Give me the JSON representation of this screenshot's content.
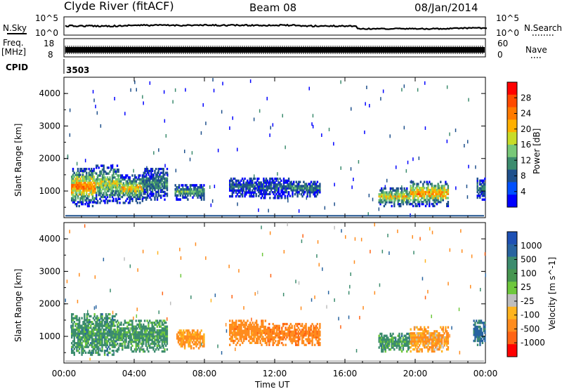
{
  "header": {
    "station": "Clyde River (fitACF)",
    "beam": "Beam 08",
    "date": "08/Jan/2014"
  },
  "top_panel": {
    "nsky_label": "N.Sky",
    "nsky_ticks": [
      "10^5",
      "10^0"
    ],
    "nsearch_label": "N.Search",
    "freq_label": "Freq.",
    "freq_unit": "[MHz]",
    "freq_ticks": [
      "18",
      "8"
    ],
    "nave_label": "Nave",
    "nave_ticks": [
      "60",
      "0"
    ],
    "cpid_label": "CPID",
    "cpid_value": "3503"
  },
  "colorbars": {
    "power": {
      "label": "Power [dB]",
      "ticks": [
        "28",
        "24",
        "20",
        "16",
        "12",
        "8",
        "4"
      ],
      "colors": [
        "#ff0000",
        "#ff4a00",
        "#ff7a00",
        "#ffb000",
        "#c8dc28",
        "#78c878",
        "#3c8c6e",
        "#1e508c",
        "#0050ff",
        "#0000ff"
      ]
    },
    "velocity": {
      "label": "Velocity [m s^-1]",
      "ticks": [
        "1000",
        "500",
        "100",
        "25",
        "-25",
        "-100",
        "-500",
        "-1000"
      ],
      "colors": [
        "#1e50b4",
        "#2864a0",
        "#3c8c6e",
        "#469650",
        "#6ec83c",
        "#bebebe",
        "#ffb41e",
        "#ff8c1e",
        "#ff6414",
        "#ff0000"
      ]
    }
  },
  "chart_data": [
    {
      "type": "heatmap",
      "ylabel": "Slant Range [km]",
      "xlabel": "",
      "x_ticks": [
        "00:00",
        "04:00",
        "08:00",
        "12:00",
        "16:00",
        "20:00",
        "00:00"
      ],
      "y_ticks": [
        "4000",
        "3000",
        "2000",
        "1000"
      ],
      "xlim_hours": [
        0,
        24
      ],
      "ylim": [
        180,
        4500
      ],
      "colorscale": "power",
      "clim_db": [
        0,
        32
      ],
      "blobs": [
        {
          "t0": 0.4,
          "t1": 1.8,
          "r0": 500,
          "r1": 1700,
          "val": 24
        },
        {
          "t0": 1.8,
          "t1": 3.2,
          "r0": 600,
          "r1": 1800,
          "val": 18
        },
        {
          "t0": 3.2,
          "t1": 4.5,
          "r0": 600,
          "r1": 1500,
          "val": 20
        },
        {
          "t0": 4.5,
          "t1": 5.9,
          "r0": 700,
          "r1": 1700,
          "val": 12
        },
        {
          "t0": 6.3,
          "t1": 8.0,
          "r0": 700,
          "r1": 1200,
          "val": 14
        },
        {
          "t0": 9.4,
          "t1": 10.9,
          "r0": 800,
          "r1": 1400,
          "val": 10
        },
        {
          "t0": 10.9,
          "t1": 12.9,
          "r0": 750,
          "r1": 1400,
          "val": 9
        },
        {
          "t0": 12.9,
          "t1": 14.6,
          "r0": 800,
          "r1": 1300,
          "val": 11
        },
        {
          "t0": 17.9,
          "t1": 19.7,
          "r0": 500,
          "r1": 1100,
          "val": 20
        },
        {
          "t0": 19.7,
          "t1": 21.9,
          "r0": 500,
          "r1": 1300,
          "val": 23
        },
        {
          "t0": 23.5,
          "t1": 24.0,
          "r0": 700,
          "r1": 1400,
          "val": 12
        }
      ]
    },
    {
      "type": "heatmap",
      "ylabel": "Slant Range [km]",
      "xlabel": "Time UT",
      "x_ticks": [
        "00:00",
        "04:00",
        "08:00",
        "12:00",
        "16:00",
        "20:00",
        "00:00"
      ],
      "y_ticks": [
        "4000",
        "3000",
        "2000",
        "1000"
      ],
      "xlim_hours": [
        0,
        24
      ],
      "ylim": [
        180,
        4500
      ],
      "colorscale": "velocity",
      "clim_ms": [
        -1000,
        1000
      ],
      "blobs": [
        {
          "t0": 0.4,
          "t1": 3.0,
          "r0": 400,
          "r1": 1700,
          "val": 150
        },
        {
          "t0": 3.0,
          "t1": 5.9,
          "r0": 500,
          "r1": 1500,
          "val": 130
        },
        {
          "t0": 6.4,
          "t1": 8.0,
          "r0": 600,
          "r1": 1200,
          "val": -150
        },
        {
          "t0": 9.4,
          "t1": 11.5,
          "r0": 700,
          "r1": 1500,
          "val": -200
        },
        {
          "t0": 11.5,
          "t1": 14.6,
          "r0": 700,
          "r1": 1400,
          "val": -250
        },
        {
          "t0": 17.9,
          "t1": 19.7,
          "r0": 500,
          "r1": 1100,
          "val": 150
        },
        {
          "t0": 19.7,
          "t1": 21.9,
          "r0": 500,
          "r1": 1300,
          "val": -120
        },
        {
          "t0": 23.3,
          "t1": 24.0,
          "r0": 700,
          "r1": 1500,
          "val": 300
        }
      ]
    }
  ]
}
